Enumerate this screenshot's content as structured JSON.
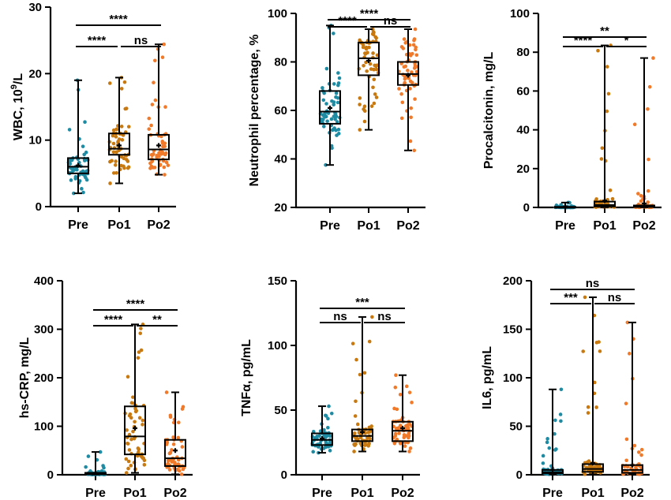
{
  "colors": {
    "Pre": "#1f8ba3",
    "Po1": "#c8790f",
    "Po2": "#f07a2a"
  },
  "chart_data": [
    {
      "type": "box",
      "ylabel_base": "WBC, 10",
      "ylabel_sup": "9",
      "ylabel_tail": "/L",
      "ylim": [
        0,
        30
      ],
      "yticks": [
        0,
        10,
        20,
        30
      ],
      "categories": [
        "Pre",
        "Po1",
        "Po2"
      ],
      "boxes": [
        {
          "group": "Pre",
          "min": 2,
          "q1": 5.0,
          "median": 6.0,
          "q3": 7.3,
          "max": 19,
          "mean": 6.2,
          "n": 55
        },
        {
          "group": "Po1",
          "min": 3.5,
          "q1": 7.8,
          "median": 8.7,
          "q3": 11.0,
          "max": 19.4,
          "mean": 9.2,
          "n": 55
        },
        {
          "group": "Po2",
          "min": 4.8,
          "q1": 7.1,
          "median": 8.6,
          "q3": 10.8,
          "max": 24.4,
          "mean": 9.2,
          "n": 55
        }
      ],
      "significance": [
        {
          "from": "Pre",
          "to": "Po2",
          "label": "****"
        },
        {
          "from": "Pre",
          "to": "Po1",
          "label": "****"
        },
        {
          "from": "Po1",
          "to": "Po2",
          "label": "ns"
        }
      ]
    },
    {
      "type": "box",
      "ylabel_base": "Neutrophil percentage, %",
      "ylabel_sup": "",
      "ylabel_tail": "",
      "ylim": [
        20,
        100
      ],
      "yticks": [
        20,
        40,
        60,
        80,
        100
      ],
      "categories": [
        "Pre",
        "Po1",
        "Po2"
      ],
      "boxes": [
        {
          "group": "Pre",
          "min": 37.5,
          "q1": 54.5,
          "median": 59.5,
          "q3": 68.0,
          "max": 95.0,
          "mean": 61.0,
          "n": 55
        },
        {
          "group": "Po1",
          "min": 52.0,
          "q1": 74.5,
          "median": 81.5,
          "q3": 88.0,
          "max": 93.5,
          "mean": 80.5,
          "n": 55
        },
        {
          "group": "Po2",
          "min": 43.5,
          "q1": 70.5,
          "median": 75.0,
          "q3": 80.0,
          "max": 93.5,
          "mean": 74.5,
          "n": 55
        }
      ],
      "significance": [
        {
          "from": "Pre",
          "to": "Po2",
          "label": "****"
        },
        {
          "from": "Pre",
          "to": "Po1",
          "label": "****"
        },
        {
          "from": "Po1",
          "to": "Po2",
          "label": "ns"
        }
      ]
    },
    {
      "type": "box",
      "ylabel_base": "Procalcitonin, mg/L",
      "ylabel_sup": "",
      "ylabel_tail": "",
      "ylim": [
        0,
        100
      ],
      "yticks": [
        0,
        20,
        40,
        60,
        80,
        100
      ],
      "categories": [
        "Pre",
        "Po1",
        "Po2"
      ],
      "boxes": [
        {
          "group": "Pre",
          "min": 0.02,
          "q1": 0.05,
          "median": 0.1,
          "q3": 0.3,
          "max": 2.5,
          "mean": 0.4,
          "n": 55
        },
        {
          "group": "Po1",
          "min": 0.1,
          "q1": 0.5,
          "median": 1.2,
          "q3": 3.0,
          "max": 83.5,
          "mean": 3.5,
          "n": 55
        },
        {
          "group": "Po2",
          "min": 0.05,
          "q1": 0.2,
          "median": 0.5,
          "q3": 1.0,
          "max": 77.0,
          "mean": 2.0,
          "n": 55
        }
      ],
      "significance": [
        {
          "from": "Pre",
          "to": "Po2",
          "label": "**"
        },
        {
          "from": "Pre",
          "to": "Po1",
          "label": "****"
        },
        {
          "from": "Po1",
          "to": "Po2",
          "label": "*"
        }
      ]
    },
    {
      "type": "box",
      "ylabel_base": "hs-CRP, mg/L",
      "ylabel_sup": "",
      "ylabel_tail": "",
      "ylim": [
        0,
        400
      ],
      "yticks": [
        0,
        100,
        200,
        300,
        400
      ],
      "categories": [
        "Pre",
        "Po1",
        "Po2"
      ],
      "boxes": [
        {
          "group": "Pre",
          "min": 0.5,
          "q1": 1,
          "median": 2,
          "q3": 4,
          "max": 47,
          "mean": 4,
          "n": 55
        },
        {
          "group": "Po1",
          "min": 4,
          "q1": 42,
          "median": 79,
          "q3": 141,
          "max": 310,
          "mean": 96,
          "n": 55
        },
        {
          "group": "Po2",
          "min": 1,
          "q1": 18,
          "median": 34,
          "q3": 72,
          "max": 170,
          "mean": 50,
          "n": 55
        }
      ],
      "significance": [
        {
          "from": "Pre",
          "to": "Po2",
          "label": "****"
        },
        {
          "from": "Pre",
          "to": "Po1",
          "label": "****"
        },
        {
          "from": "Po1",
          "to": "Po2",
          "label": "**"
        }
      ]
    },
    {
      "type": "box",
      "ylabel_base": "TNFα, pg/mL",
      "ylabel_sup": "",
      "ylabel_tail": "",
      "ylim": [
        0,
        150
      ],
      "yticks": [
        0,
        50,
        100,
        150
      ],
      "categories": [
        "Pre",
        "Po1",
        "Po2"
      ],
      "boxes": [
        {
          "group": "Pre",
          "min": 17,
          "q1": 23,
          "median": 27,
          "q3": 32,
          "max": 53,
          "mean": 28,
          "n": 55
        },
        {
          "group": "Po1",
          "min": 18,
          "q1": 26,
          "median": 30,
          "q3": 35,
          "max": 122,
          "mean": 33,
          "n": 55
        },
        {
          "group": "Po2",
          "min": 18,
          "q1": 26,
          "median": 34,
          "q3": 41,
          "max": 77,
          "mean": 36,
          "n": 55
        }
      ],
      "significance": [
        {
          "from": "Pre",
          "to": "Po2",
          "label": "***"
        },
        {
          "from": "Pre",
          "to": "Po1",
          "label": "ns"
        },
        {
          "from": "Po1",
          "to": "Po2",
          "label": "ns"
        }
      ]
    },
    {
      "type": "box",
      "ylabel_base": "IL6, pg/mL",
      "ylabel_sup": "",
      "ylabel_tail": "",
      "ylim": [
        0,
        200
      ],
      "yticks": [
        0,
        50,
        100,
        150,
        200
      ],
      "categories": [
        "Pre",
        "Po1",
        "Po2"
      ],
      "boxes": [
        {
          "group": "Pre",
          "min": 0.5,
          "q1": 1.5,
          "median": 2.5,
          "q3": 5,
          "max": 88,
          "mean": 5,
          "n": 55
        },
        {
          "group": "Po1",
          "min": 0.5,
          "q1": 3,
          "median": 6,
          "q3": 11,
          "max": 183,
          "mean": 12,
          "n": 55
        },
        {
          "group": "Po2",
          "min": 0.5,
          "q1": 2,
          "median": 5,
          "q3": 10,
          "max": 157,
          "mean": 10,
          "n": 55
        }
      ],
      "significance": [
        {
          "from": "Pre",
          "to": "Po2",
          "label": "ns"
        },
        {
          "from": "Pre",
          "to": "Po1",
          "label": "***"
        },
        {
          "from": "Po1",
          "to": "Po2",
          "label": "ns"
        }
      ]
    }
  ]
}
